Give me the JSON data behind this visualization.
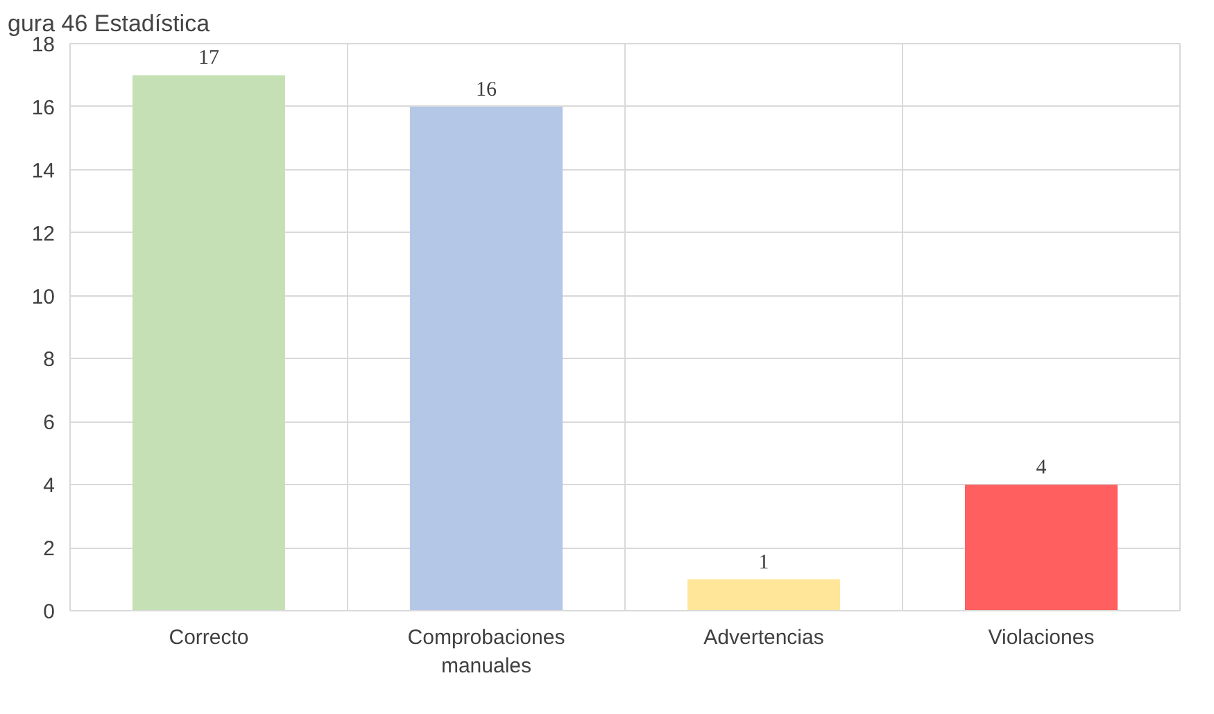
{
  "chart_data": {
    "type": "bar",
    "title": "gura 46 Estadística",
    "categories": [
      "Correcto",
      "Comprobaciones manuales",
      "Advertencias",
      "Violaciones"
    ],
    "values": [
      17,
      16,
      1,
      4
    ],
    "colors": [
      "#c5e0b4",
      "#b4c7e7",
      "#ffe699",
      "#ff5f5f"
    ],
    "ylim": [
      0,
      18
    ],
    "yticks": [
      0,
      2,
      4,
      6,
      8,
      10,
      12,
      14,
      16,
      18
    ],
    "grid": true,
    "data_labels": true
  }
}
